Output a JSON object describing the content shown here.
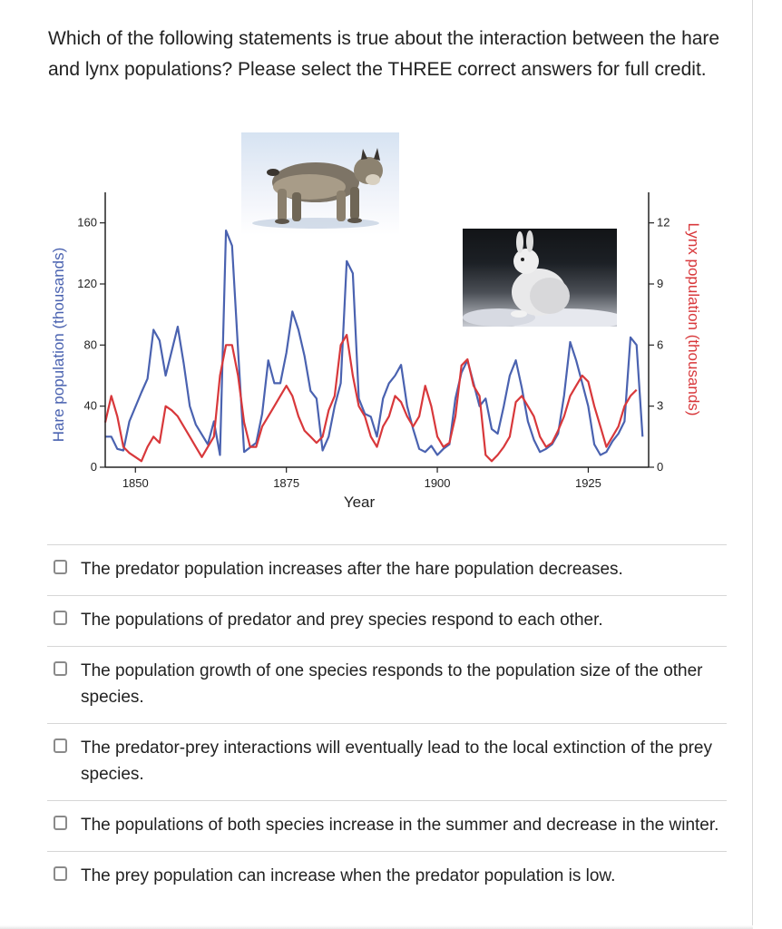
{
  "question": {
    "text": "Which of the following statements is true about the interaction between the hare and lynx populations? Please select the THREE correct answers for full credit."
  },
  "images": {
    "lynx": "lynx-photo",
    "hare": "snowshoe-hare-photo"
  },
  "chart_data": {
    "type": "line",
    "xlabel": "Year",
    "ylabel_left": "Hare population (thousands)",
    "ylabel_right": "Lynx population (thousands)",
    "x_ticks": [
      1850,
      1875,
      1900,
      1925
    ],
    "y_ticks_left": [
      0,
      40,
      80,
      120,
      160
    ],
    "y_ticks_right": [
      0,
      3,
      6,
      9,
      12
    ],
    "xlim": [
      1845,
      1935
    ],
    "ylim_left": [
      0,
      180
    ],
    "ylim_right": [
      0,
      13.5
    ],
    "series": [
      {
        "name": "",
        "axis": "left",
        "color": "#4a62b0",
        "points": [
          [
            1845,
            20
          ],
          [
            1846,
            20
          ],
          [
            1847,
            12
          ],
          [
            1848,
            11
          ],
          [
            1849,
            30
          ],
          [
            1851,
            49
          ],
          [
            1852,
            58
          ],
          [
            1853,
            90
          ],
          [
            1854,
            83
          ],
          [
            1855,
            60
          ],
          [
            1857,
            92
          ],
          [
            1858,
            68
          ],
          [
            1859,
            40
          ],
          [
            1860,
            28
          ],
          [
            1862,
            15
          ],
          [
            1863,
            30
          ],
          [
            1864,
            8
          ],
          [
            1865,
            155
          ],
          [
            1866,
            145
          ],
          [
            1867,
            77
          ],
          [
            1868,
            10
          ],
          [
            1869,
            13
          ],
          [
            1870,
            16
          ],
          [
            1871,
            35
          ],
          [
            1872,
            70
          ],
          [
            1873,
            55
          ],
          [
            1874,
            55
          ],
          [
            1875,
            75
          ],
          [
            1876,
            102
          ],
          [
            1877,
            90
          ],
          [
            1878,
            73
          ],
          [
            1879,
            50
          ],
          [
            1880,
            45
          ],
          [
            1881,
            11
          ],
          [
            1882,
            20
          ],
          [
            1883,
            40
          ],
          [
            1884,
            55
          ],
          [
            1885,
            135
          ],
          [
            1886,
            127
          ],
          [
            1887,
            45
          ],
          [
            1888,
            35
          ],
          [
            1889,
            33
          ],
          [
            1890,
            20
          ],
          [
            1891,
            45
          ],
          [
            1892,
            55
          ],
          [
            1893,
            60
          ],
          [
            1894,
            67
          ],
          [
            1895,
            40
          ],
          [
            1896,
            25
          ],
          [
            1897,
            12
          ],
          [
            1898,
            10
          ],
          [
            1899,
            14
          ],
          [
            1900,
            8
          ],
          [
            1901,
            12
          ],
          [
            1902,
            15
          ],
          [
            1903,
            45
          ],
          [
            1904,
            62
          ],
          [
            1905,
            70
          ],
          [
            1906,
            55
          ],
          [
            1907,
            40
          ],
          [
            1908,
            45
          ],
          [
            1909,
            25
          ],
          [
            1910,
            22
          ],
          [
            1911,
            40
          ],
          [
            1912,
            60
          ],
          [
            1913,
            70
          ],
          [
            1914,
            52
          ],
          [
            1915,
            30
          ],
          [
            1916,
            18
          ],
          [
            1917,
            10
          ],
          [
            1918,
            12
          ],
          [
            1919,
            15
          ],
          [
            1920,
            22
          ],
          [
            1921,
            47
          ],
          [
            1922,
            82
          ],
          [
            1923,
            70
          ],
          [
            1924,
            55
          ],
          [
            1925,
            40
          ],
          [
            1926,
            15
          ],
          [
            1927,
            8
          ],
          [
            1928,
            10
          ],
          [
            1929,
            17
          ],
          [
            1930,
            22
          ],
          [
            1931,
            30
          ],
          [
            1932,
            85
          ],
          [
            1933,
            80
          ],
          [
            1934,
            20
          ]
        ]
      },
      {
        "name": "",
        "axis": "right",
        "color": "#d8383b",
        "points": [
          [
            1845,
            2.2
          ],
          [
            1846,
            3.5
          ],
          [
            1847,
            2.5
          ],
          [
            1848,
            1.0
          ],
          [
            1849,
            0.7
          ],
          [
            1850,
            0.5
          ],
          [
            1851,
            0.3
          ],
          [
            1852,
            1.0
          ],
          [
            1853,
            1.5
          ],
          [
            1854,
            1.2
          ],
          [
            1855,
            3.0
          ],
          [
            1856,
            2.8
          ],
          [
            1857,
            2.5
          ],
          [
            1858,
            2.0
          ],
          [
            1859,
            1.5
          ],
          [
            1860,
            1.0
          ],
          [
            1861,
            0.5
          ],
          [
            1862,
            1.0
          ],
          [
            1863,
            1.5
          ],
          [
            1864,
            4.5
          ],
          [
            1865,
            6.0
          ],
          [
            1866,
            6.0
          ],
          [
            1867,
            4.5
          ],
          [
            1868,
            2.2
          ],
          [
            1869,
            1.0
          ],
          [
            1870,
            1.0
          ],
          [
            1871,
            2.0
          ],
          [
            1872,
            2.5
          ],
          [
            1873,
            3.0
          ],
          [
            1874,
            3.5
          ],
          [
            1875,
            4.0
          ],
          [
            1876,
            3.5
          ],
          [
            1877,
            2.5
          ],
          [
            1878,
            1.8
          ],
          [
            1879,
            1.5
          ],
          [
            1880,
            1.2
          ],
          [
            1881,
            1.5
          ],
          [
            1882,
            2.8
          ],
          [
            1883,
            3.5
          ],
          [
            1884,
            6.0
          ],
          [
            1885,
            6.5
          ],
          [
            1886,
            4.5
          ],
          [
            1887,
            3.0
          ],
          [
            1888,
            2.5
          ],
          [
            1889,
            1.5
          ],
          [
            1890,
            1.0
          ],
          [
            1891,
            2.0
          ],
          [
            1892,
            2.5
          ],
          [
            1893,
            3.5
          ],
          [
            1894,
            3.2
          ],
          [
            1895,
            2.5
          ],
          [
            1896,
            2.0
          ],
          [
            1897,
            2.5
          ],
          [
            1898,
            4.0
          ],
          [
            1899,
            3.0
          ],
          [
            1900,
            1.5
          ],
          [
            1901,
            1.0
          ],
          [
            1902,
            1.2
          ],
          [
            1903,
            2.5
          ],
          [
            1904,
            5.0
          ],
          [
            1905,
            5.3
          ],
          [
            1906,
            4.0
          ],
          [
            1907,
            3.5
          ],
          [
            1908,
            0.6
          ],
          [
            1909,
            0.3
          ],
          [
            1910,
            0.6
          ],
          [
            1911,
            1.0
          ],
          [
            1912,
            1.5
          ],
          [
            1913,
            3.2
          ],
          [
            1914,
            3.5
          ],
          [
            1915,
            3.0
          ],
          [
            1916,
            2.5
          ],
          [
            1917,
            1.5
          ],
          [
            1918,
            1.0
          ],
          [
            1919,
            1.2
          ],
          [
            1920,
            1.8
          ],
          [
            1921,
            2.5
          ],
          [
            1922,
            3.5
          ],
          [
            1923,
            4.0
          ],
          [
            1924,
            4.5
          ],
          [
            1925,
            4.2
          ],
          [
            1926,
            3.0
          ],
          [
            1927,
            2.0
          ],
          [
            1928,
            1.0
          ],
          [
            1929,
            1.5
          ],
          [
            1930,
            2.0
          ],
          [
            1931,
            3.0
          ],
          [
            1932,
            3.5
          ],
          [
            1933,
            3.8
          ]
        ]
      }
    ]
  },
  "options": [
    {
      "label": "The predator population increases after the hare population decreases."
    },
    {
      "label": "The populations of predator and prey species respond to each other."
    },
    {
      "label": "The population growth of one species responds to the population size of the other species."
    },
    {
      "label": "The predator-prey interactions will eventually lead to the local extinction of the prey species."
    },
    {
      "label": "The populations of both species increase in the summer and decrease in the winter."
    },
    {
      "label": "The prey population can increase when the predator population is low."
    }
  ]
}
